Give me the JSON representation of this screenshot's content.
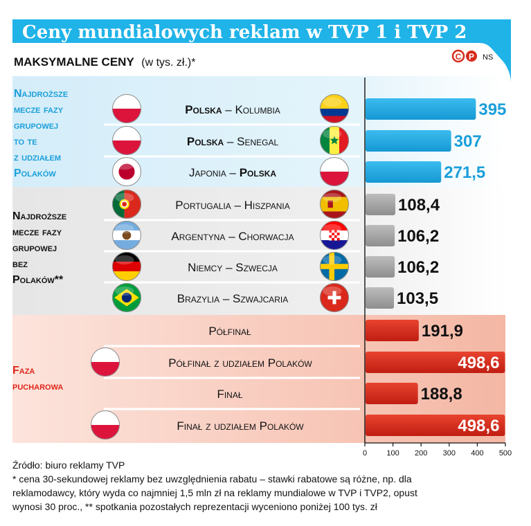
{
  "title": "Ceny mundialowych reklam w TVP 1 i TVP 2",
  "subtitle_bold": "Maksymalne ceny",
  "subtitle_normal": "(w tys. zł.)*",
  "brand": "NS",
  "groups": [
    {
      "label": [
        "Najdroższe",
        "mecze fazy",
        "grupowej",
        "to te",
        "z udziałem",
        "Polaków"
      ]
    },
    {
      "label": [
        "Najdroższe",
        "mecze fazy",
        "grupowej",
        "bez",
        "Polaków**"
      ]
    },
    {
      "label": [
        "Faza",
        "pucharowa"
      ]
    }
  ],
  "rows": [
    {
      "team1": "Polska",
      "team2": "Kolumbia",
      "bold_team": 1,
      "flag1": "poland",
      "flag2": "colombia"
    },
    {
      "team1": "Polska",
      "team2": "Senegal",
      "bold_team": 1,
      "flag1": "poland",
      "flag2": "senegal"
    },
    {
      "team1": "Japonia",
      "team2": "Polska",
      "bold_team": 2,
      "flag1": "japan",
      "flag2": "poland"
    },
    {
      "team1": "Portugalia",
      "team2": "Hiszpania",
      "bold_team": 0,
      "flag1": "portugal",
      "flag2": "spain"
    },
    {
      "team1": "Argentyna",
      "team2": "Chorwacja",
      "bold_team": 0,
      "flag1": "argentina",
      "flag2": "croatia"
    },
    {
      "team1": "Niemcy",
      "team2": "Szwecja",
      "bold_team": 0,
      "flag1": "germany",
      "flag2": "sweden"
    },
    {
      "team1": "Brazylia",
      "team2": "Szwajcaria",
      "bold_team": 0,
      "flag1": "brazil",
      "flag2": "switzerland"
    },
    {
      "label": "Półfinał"
    },
    {
      "label": "Półfinał z udziałem Polaków",
      "flag1": "poland"
    },
    {
      "label": "Finał"
    },
    {
      "label": "Finał z udziałem Polaków",
      "flag1": "poland"
    }
  ],
  "value_labels": [
    "395",
    "307",
    "271,5",
    "108,4",
    "106,2",
    "106,2",
    "103,5",
    "191,9",
    "498,6",
    "188,8",
    "498,6"
  ],
  "colors": {
    "title_bar": "#1fb3e8",
    "blue_bar": "#22a9e1",
    "blue_label": "#1a9fd9",
    "gray_bar": "#a5a5a5",
    "red_bar": "#d62a1a",
    "red_label": "#e0251b",
    "blue_panel": "#d7effa",
    "gray_panel": "#e9e9e9",
    "red_panel": "#fbd9cf"
  },
  "chart_data": {
    "type": "bar",
    "orientation": "horizontal",
    "title": "Ceny mundialowych reklam w TVP 1 i TVP 2",
    "subtitle": "Maksymalne ceny (w tys. zł.)*",
    "categories": [
      "Polska – Kolumbia",
      "Polska – Senegal",
      "Japonia – Polska",
      "Portugalia – Hiszpania",
      "Argentyna – Chorwacja",
      "Niemcy – Szwecja",
      "Brazylia – Szwajcaria",
      "Półfinał",
      "Półfinał z udziałem Polaków",
      "Finał",
      "Finał z udziałem Polaków"
    ],
    "values": [
      395,
      307,
      271.5,
      108.4,
      106.2,
      106.2,
      103.5,
      191.9,
      498.6,
      188.8,
      498.6
    ],
    "xlim": [
      0,
      500
    ],
    "xticks": [
      0,
      100,
      200,
      300,
      400,
      500
    ],
    "grid": false
  },
  "source": {
    "line1": "Źródło: biuro reklamy TVP",
    "line2": "* cena 30-sekundowej reklamy bez uwzględnienia rabatu – stawki rabatowe są różne, np. dla",
    "line3": "reklamodawcy, który wyda co najmniej 1,5 mln zł na reklamy mundialowe w TVP i TVP2, opust",
    "line4": "wynosi 30 proc., ** spotkania pozostałych reprezentacji wyceniono poniżej 100 tys. zł"
  }
}
